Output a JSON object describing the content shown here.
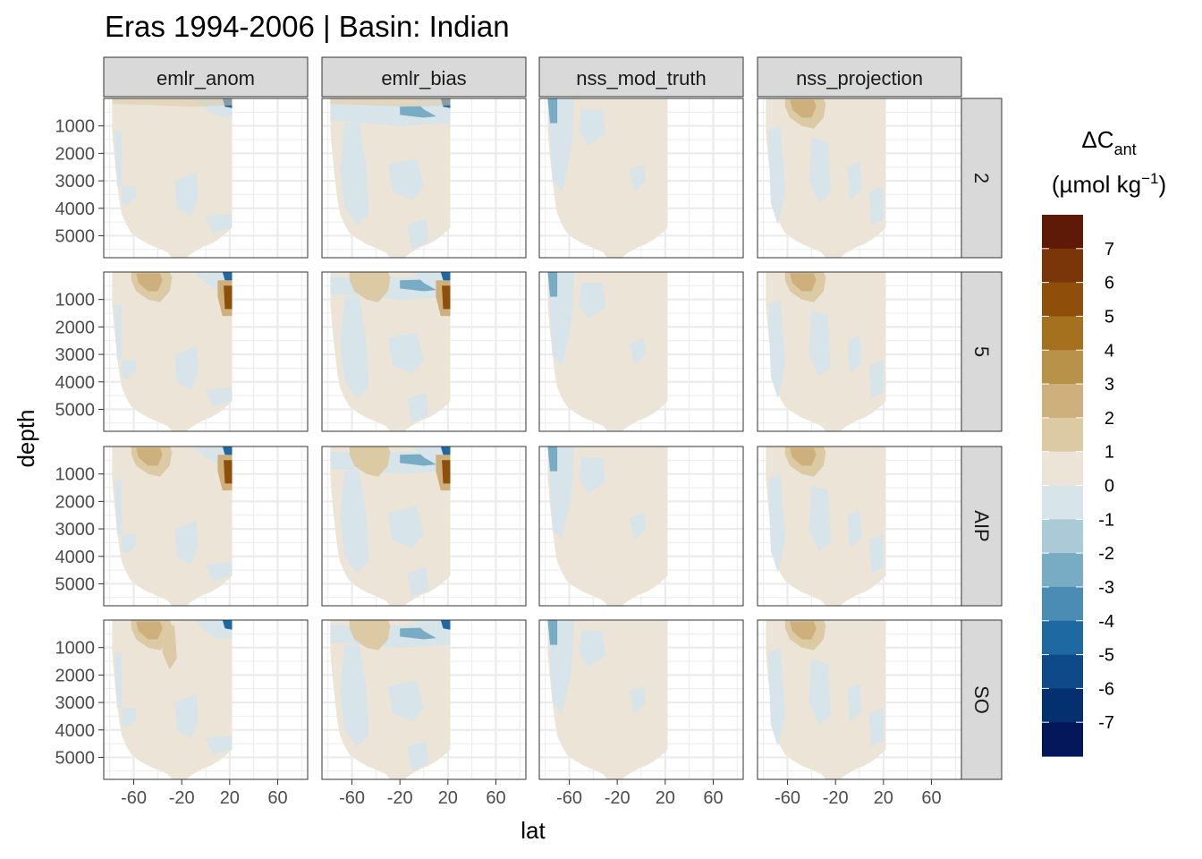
{
  "chart_data": {
    "type": "heatmap",
    "title": "Eras 1994-2006 | Basin: Indian",
    "xlabel": "lat",
    "ylabel": "depth",
    "x_ticks": [
      -60,
      -20,
      20,
      60
    ],
    "x_range": [
      -85,
      85
    ],
    "y_ticks": [
      1000,
      2000,
      3000,
      4000,
      5000
    ],
    "y_range": [
      0,
      5800
    ],
    "y_reversed": true,
    "grid": true,
    "legend_position": "right",
    "column_facets": [
      "emlr_anom",
      "emlr_bias",
      "nss_mod_truth",
      "nss_projection"
    ],
    "row_facets": [
      "2",
      "5",
      "AIP",
      "SO"
    ],
    "legend": {
      "title": "ΔC",
      "title_subscript": "ant",
      "units_prefix": "(µmol kg",
      "units_exponent": "−1",
      "units_suffix": ")",
      "labels": [
        "7",
        "6",
        "5",
        "4",
        "3",
        "2",
        "1",
        "0",
        "-1",
        "-2",
        "-3",
        "-4",
        "-5",
        "-6",
        "-7"
      ],
      "colors": [
        "#5e1a07",
        "#7a3608",
        "#8f4f0a",
        "#a5711f",
        "#b99249",
        "#cdb07b",
        "#dccaa5",
        "#ebe4d7",
        "#d7e4ea",
        "#abcad8",
        "#78abc4",
        "#4a8cb3",
        "#1f69a2",
        "#0e4a8a",
        "#05306f",
        "#03175a"
      ]
    },
    "series_colors": {
      "deep_blue": "#1f69a2",
      "mid_blue": "#78abc4",
      "light_blue": "#d7e4ea",
      "neutral": "#ebe4d7",
      "light_brown": "#dccaa5",
      "mid_brown": "#cdb07b",
      "dark_brown": "#8f4f0a"
    }
  }
}
